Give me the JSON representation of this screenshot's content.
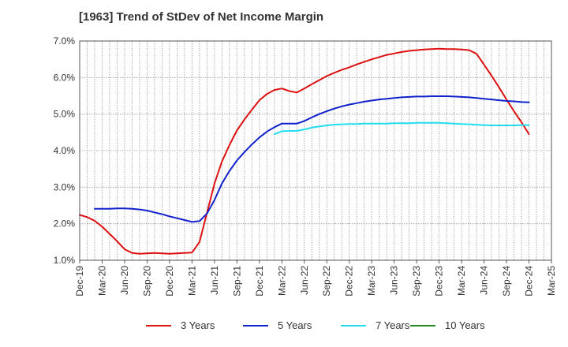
{
  "chart_data": {
    "type": "line",
    "title": "[1963]  Trend of StDev of Net Income Margin",
    "xlabel": "",
    "ylabel": "",
    "x_tick_labels": [
      "Dec-19",
      "Mar-20",
      "Jun-20",
      "Sep-20",
      "Dec-20",
      "Mar-21",
      "Jun-21",
      "Sep-21",
      "Dec-21",
      "Mar-22",
      "Jun-22",
      "Sep-22",
      "Dec-22",
      "Mar-23",
      "Jun-23",
      "Sep-23",
      "Dec-23",
      "Mar-24",
      "Jun-24",
      "Sep-24",
      "Dec-24",
      "Mar-25"
    ],
    "y_tick_labels": [
      "1.0%",
      "2.0%",
      "3.0%",
      "4.0%",
      "5.0%",
      "6.0%",
      "7.0%"
    ],
    "ylim": [
      1.0,
      7.0
    ],
    "y_unit": "%",
    "grid": true,
    "legend_position": "bottom",
    "series": [
      {
        "name": "3 Years",
        "color": "#dd1111",
        "points": [
          [
            "Dec-19",
            2.24
          ],
          [
            "Jan-20",
            2.18
          ],
          [
            "Feb-20",
            2.08
          ],
          [
            "Mar-20",
            1.92
          ],
          [
            "Apr-20",
            1.72
          ],
          [
            "May-20",
            1.52
          ],
          [
            "Jun-20",
            1.3
          ],
          [
            "Jul-20",
            1.2
          ],
          [
            "Aug-20",
            1.18
          ],
          [
            "Sep-20",
            1.19
          ],
          [
            "Oct-20",
            1.2
          ],
          [
            "Nov-20",
            1.19
          ],
          [
            "Dec-20",
            1.18
          ],
          [
            "Jan-21",
            1.19
          ],
          [
            "Feb-21",
            1.2
          ],
          [
            "Mar-21",
            1.21
          ],
          [
            "Apr-21",
            1.5
          ],
          [
            "May-21",
            2.3
          ],
          [
            "Jun-21",
            3.1
          ],
          [
            "Jul-21",
            3.7
          ],
          [
            "Aug-21",
            4.15
          ],
          [
            "Sep-21",
            4.55
          ],
          [
            "Oct-21",
            4.85
          ],
          [
            "Nov-21",
            5.12
          ],
          [
            "Dec-21",
            5.38
          ],
          [
            "Jan-22",
            5.55
          ],
          [
            "Feb-22",
            5.66
          ],
          [
            "Mar-22",
            5.7
          ],
          [
            "Apr-22",
            5.63
          ],
          [
            "May-22",
            5.59
          ],
          [
            "Jun-22",
            5.7
          ],
          [
            "Jul-22",
            5.82
          ],
          [
            "Aug-22",
            5.93
          ],
          [
            "Sep-22",
            6.04
          ],
          [
            "Oct-22",
            6.13
          ],
          [
            "Nov-22",
            6.21
          ],
          [
            "Dec-22",
            6.28
          ],
          [
            "Jan-23",
            6.36
          ],
          [
            "Feb-23",
            6.43
          ],
          [
            "Mar-23",
            6.5
          ],
          [
            "Apr-23",
            6.56
          ],
          [
            "May-23",
            6.62
          ],
          [
            "Jun-23",
            6.66
          ],
          [
            "Jul-23",
            6.7
          ],
          [
            "Aug-23",
            6.73
          ],
          [
            "Sep-23",
            6.75
          ],
          [
            "Oct-23",
            6.77
          ],
          [
            "Nov-23",
            6.78
          ],
          [
            "Dec-23",
            6.79
          ],
          [
            "Jan-24",
            6.78
          ],
          [
            "Feb-24",
            6.78
          ],
          [
            "Mar-24",
            6.77
          ],
          [
            "Apr-24",
            6.75
          ],
          [
            "May-24",
            6.65
          ],
          [
            "Jun-24",
            6.35
          ],
          [
            "Jul-24",
            6.05
          ],
          [
            "Aug-24",
            5.73
          ],
          [
            "Sep-24",
            5.4
          ],
          [
            "Oct-24",
            5.08
          ],
          [
            "Nov-24",
            4.78
          ],
          [
            "Dec-24",
            4.45
          ]
        ]
      },
      {
        "name": "5 Years",
        "color": "#1122cc",
        "points": [
          [
            "Feb-20",
            2.41
          ],
          [
            "Mar-20",
            2.41
          ],
          [
            "Apr-20",
            2.41
          ],
          [
            "May-20",
            2.42
          ],
          [
            "Jun-20",
            2.42
          ],
          [
            "Jul-20",
            2.41
          ],
          [
            "Aug-20",
            2.39
          ],
          [
            "Sep-20",
            2.36
          ],
          [
            "Oct-20",
            2.31
          ],
          [
            "Nov-20",
            2.26
          ],
          [
            "Dec-20",
            2.2
          ],
          [
            "Jan-21",
            2.15
          ],
          [
            "Feb-21",
            2.1
          ],
          [
            "Mar-21",
            2.05
          ],
          [
            "Apr-21",
            2.07
          ],
          [
            "May-21",
            2.28
          ],
          [
            "Jun-21",
            2.65
          ],
          [
            "Jul-21",
            3.1
          ],
          [
            "Aug-21",
            3.44
          ],
          [
            "Sep-21",
            3.73
          ],
          [
            "Oct-21",
            3.96
          ],
          [
            "Nov-21",
            4.17
          ],
          [
            "Dec-21",
            4.36
          ],
          [
            "Jan-22",
            4.52
          ],
          [
            "Feb-22",
            4.64
          ],
          [
            "Mar-22",
            4.74
          ],
          [
            "Apr-22",
            4.74
          ],
          [
            "May-22",
            4.74
          ],
          [
            "Jun-22",
            4.81
          ],
          [
            "Jul-22",
            4.91
          ],
          [
            "Aug-22",
            5.0
          ],
          [
            "Sep-22",
            5.08
          ],
          [
            "Oct-22",
            5.15
          ],
          [
            "Nov-22",
            5.21
          ],
          [
            "Dec-22",
            5.26
          ],
          [
            "Jan-23",
            5.3
          ],
          [
            "Feb-23",
            5.34
          ],
          [
            "Mar-23",
            5.37
          ],
          [
            "Apr-23",
            5.4
          ],
          [
            "May-23",
            5.42
          ],
          [
            "Jun-23",
            5.44
          ],
          [
            "Jul-23",
            5.46
          ],
          [
            "Aug-23",
            5.47
          ],
          [
            "Sep-23",
            5.48
          ],
          [
            "Oct-23",
            5.48
          ],
          [
            "Nov-23",
            5.49
          ],
          [
            "Dec-23",
            5.49
          ],
          [
            "Jan-24",
            5.49
          ],
          [
            "Feb-24",
            5.48
          ],
          [
            "Mar-24",
            5.47
          ],
          [
            "Apr-24",
            5.46
          ],
          [
            "May-24",
            5.44
          ],
          [
            "Jun-24",
            5.42
          ],
          [
            "Jul-24",
            5.4
          ],
          [
            "Aug-24",
            5.38
          ],
          [
            "Sep-24",
            5.36
          ],
          [
            "Oct-24",
            5.35
          ],
          [
            "Nov-24",
            5.33
          ],
          [
            "Dec-24",
            5.32
          ]
        ]
      },
      {
        "name": "7 Years",
        "color": "#22ddee",
        "points": [
          [
            "Feb-22",
            4.45
          ],
          [
            "Mar-22",
            4.53
          ],
          [
            "Apr-22",
            4.54
          ],
          [
            "May-22",
            4.54
          ],
          [
            "Jun-22",
            4.58
          ],
          [
            "Jul-22",
            4.63
          ],
          [
            "Aug-22",
            4.66
          ],
          [
            "Sep-22",
            4.69
          ],
          [
            "Oct-22",
            4.71
          ],
          [
            "Nov-22",
            4.72
          ],
          [
            "Dec-22",
            4.73
          ],
          [
            "Jan-23",
            4.73
          ],
          [
            "Feb-23",
            4.74
          ],
          [
            "Mar-23",
            4.74
          ],
          [
            "Apr-23",
            4.74
          ],
          [
            "May-23",
            4.74
          ],
          [
            "Jun-23",
            4.75
          ],
          [
            "Jul-23",
            4.75
          ],
          [
            "Aug-23",
            4.75
          ],
          [
            "Sep-23",
            4.76
          ],
          [
            "Oct-23",
            4.76
          ],
          [
            "Nov-23",
            4.76
          ],
          [
            "Dec-23",
            4.76
          ],
          [
            "Jan-24",
            4.75
          ],
          [
            "Feb-24",
            4.74
          ],
          [
            "Mar-24",
            4.73
          ],
          [
            "Apr-24",
            4.72
          ],
          [
            "May-24",
            4.71
          ],
          [
            "Jun-24",
            4.7
          ],
          [
            "Jul-24",
            4.69
          ],
          [
            "Aug-24",
            4.69
          ],
          [
            "Sep-24",
            4.69
          ],
          [
            "Oct-24",
            4.69
          ],
          [
            "Nov-24",
            4.7
          ],
          [
            "Dec-24",
            4.7
          ]
        ]
      },
      {
        "name": "10 Years",
        "color": "#228822",
        "points": []
      }
    ]
  }
}
